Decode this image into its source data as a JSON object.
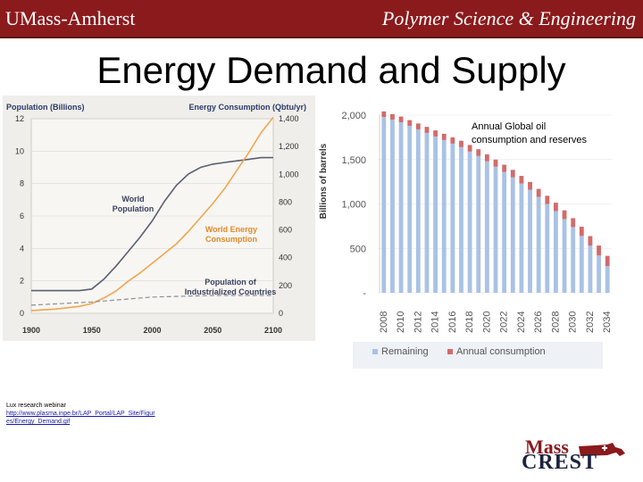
{
  "header": {
    "left_text": "UMass-Amherst",
    "right_text": "Polymer Science & Engineering",
    "bg_color": "#8b1a1c"
  },
  "title": "Energy Demand and Supply",
  "source": {
    "line1": "Lux research webinar",
    "link": "http://www.plasma.inpe.br/LAP_Portal/LAP_Site/Figures/Energy_Demand.gif"
  },
  "logo": {
    "top": "Mass",
    "bottom": "CREST"
  },
  "chart_data": [
    {
      "type": "line",
      "left_axis_label": "Population (Billions)",
      "right_axis_label": "Energy Consumption (Qbtu/yr)",
      "x_ticks": [
        "1900",
        "1950",
        "2000",
        "2050",
        "2100"
      ],
      "left_ticks": [
        "0",
        "2",
        "4",
        "6",
        "8",
        "10",
        "12"
      ],
      "right_ticks": [
        "0",
        "200",
        "400",
        "600",
        "800",
        "1,000",
        "1,200",
        "1,400"
      ],
      "xlim": [
        1900,
        2100
      ],
      "ylim_left": [
        0,
        12
      ],
      "ylim_right": [
        0,
        1400
      ],
      "series": [
        {
          "name": "World Population",
          "color": "#5a5f73",
          "axis": "left",
          "x": [
            1900,
            1920,
            1940,
            1950,
            1960,
            1970,
            1980,
            1990,
            2000,
            2010,
            2020,
            2030,
            2040,
            2050,
            2060,
            2070,
            2080,
            2090,
            2100
          ],
          "y": [
            1.4,
            1.4,
            1.4,
            1.5,
            2.1,
            2.9,
            3.8,
            4.7,
            5.7,
            6.9,
            7.9,
            8.6,
            9.0,
            9.2,
            9.3,
            9.4,
            9.5,
            9.6,
            9.6
          ]
        },
        {
          "name": "World Energy Consumption",
          "color": "#f2a650",
          "axis": "right",
          "x": [
            1900,
            1920,
            1940,
            1950,
            1960,
            1970,
            1980,
            1990,
            2000,
            2010,
            2020,
            2030,
            2040,
            2050,
            2060,
            2070,
            2080,
            2090,
            2100
          ],
          "y": [
            20,
            30,
            50,
            70,
            110,
            160,
            230,
            290,
            360,
            430,
            500,
            590,
            690,
            790,
            900,
            1030,
            1160,
            1300,
            1410
          ]
        },
        {
          "name": "Population of Industrialized Countries",
          "color": "#8a8f99",
          "axis": "left",
          "dashed": true,
          "x": [
            1900,
            1950,
            2000,
            2050,
            2100
          ],
          "y": [
            0.5,
            0.7,
            1.0,
            1.1,
            1.1
          ]
        }
      ]
    },
    {
      "type": "bar",
      "title": "Annual Global oil consumption and reserves",
      "ylabel": "Billions of barrels",
      "y_ticks": [
        "-",
        "500",
        "1,000",
        "1,500",
        "2,000"
      ],
      "ylim": [
        0,
        2000
      ],
      "categories": [
        "2008",
        "2009",
        "2010",
        "2011",
        "2012",
        "2013",
        "2014",
        "2015",
        "2016",
        "2017",
        "2018",
        "2019",
        "2020",
        "2021",
        "2022",
        "2023",
        "2024",
        "2025",
        "2026",
        "2027",
        "2028",
        "2029",
        "2030",
        "2031",
        "2032",
        "2033",
        "2034"
      ],
      "x_tick_labels": [
        "2008",
        "",
        "2010",
        "",
        "2012",
        "",
        "2014",
        "",
        "2016",
        "",
        "2018",
        "",
        "2020",
        "",
        "2022",
        "",
        "2024",
        "",
        "2026",
        "",
        "2028",
        "",
        "2030",
        "",
        "2032",
        "",
        "2034"
      ],
      "series": [
        {
          "name": "Remaining",
          "color": "#a9c2e6",
          "values": [
            1980,
            1950,
            1920,
            1880,
            1840,
            1800,
            1760,
            1720,
            1680,
            1640,
            1590,
            1540,
            1480,
            1420,
            1360,
            1300,
            1230,
            1160,
            1080,
            1000,
            920,
            830,
            740,
            640,
            530,
            420,
            300
          ]
        },
        {
          "name": "Annual consumption",
          "color": "#d46a6a",
          "values": [
            31,
            31,
            32,
            32,
            33,
            34,
            34,
            35,
            35,
            36,
            37,
            38,
            39,
            40,
            41,
            42,
            43,
            44,
            45,
            46,
            47,
            49,
            50,
            52,
            54,
            56,
            58
          ]
        }
      ]
    }
  ]
}
